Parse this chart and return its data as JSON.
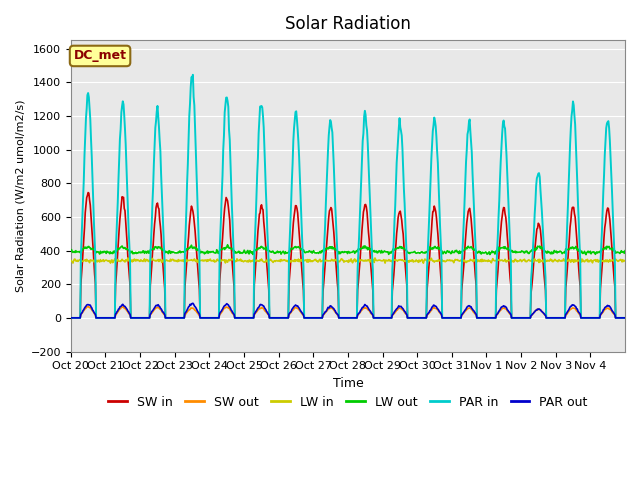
{
  "title": "Solar Radiation",
  "xlabel": "Time",
  "ylabel": "Solar Radiation (W/m2 umol/m2/s)",
  "ylim": [
    -200,
    1650
  ],
  "yticks": [
    -200,
    0,
    200,
    400,
    600,
    800,
    1000,
    1200,
    1400,
    1600
  ],
  "x_labels": [
    "Oct 20",
    "Oct 21",
    "Oct 22",
    "Oct 23",
    "Oct 24",
    "Oct 25",
    "Oct 26",
    "Oct 27",
    "Oct 28",
    "Oct 29",
    "Oct 30",
    "Oct 31",
    "Nov 1",
    "Nov 2",
    "Nov 3",
    "Nov 4"
  ],
  "annotation_text": "DC_met",
  "annotation_color": "#8B0000",
  "annotation_bg": "#FFFF99",
  "annotation_edge": "#8B6914",
  "legend_labels": [
    "SW in",
    "SW out",
    "LW in",
    "LW out",
    "PAR in",
    "PAR out"
  ],
  "legend_colors": [
    "#CC0000",
    "#FF8C00",
    "#CCCC00",
    "#00CC00",
    "#00CCCC",
    "#0000CC"
  ],
  "bg_color": "#E8E8E8",
  "n_days": 16,
  "pts_per_day": 48
}
